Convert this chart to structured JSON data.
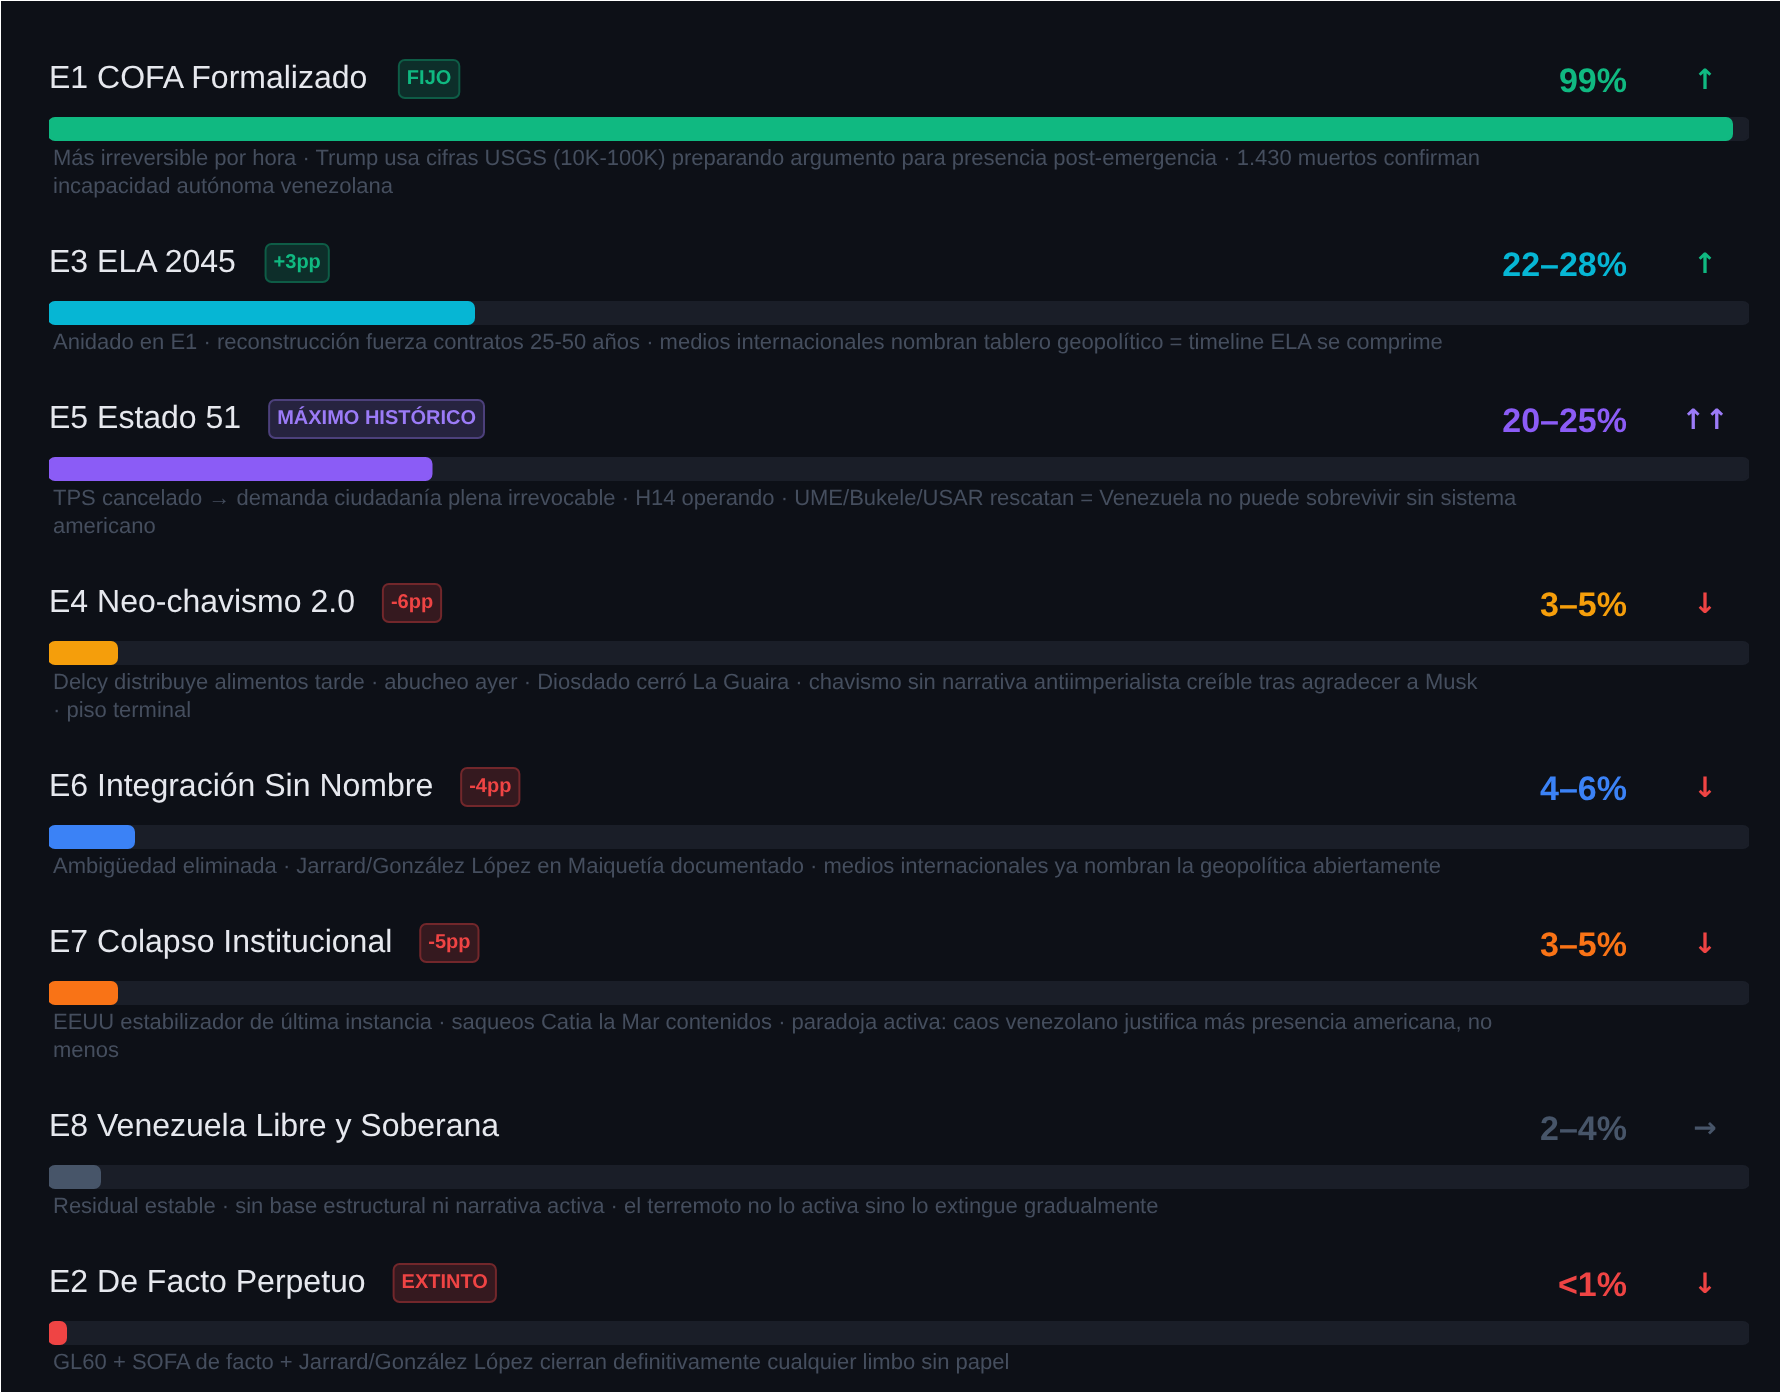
{
  "chart_data": {
    "type": "bar",
    "orientation": "horizontal",
    "categories": [
      "E1 COFA Formalizado",
      "E3 ELA 2045",
      "E5 Estado 51",
      "E4 Neo-chavismo 2.0",
      "E6 Integración Sin Nombre",
      "E7 Colapso Institucional",
      "E8 Venezuela Libre y Soberana",
      "E2 De Facto Perpetuo"
    ],
    "values": [
      99,
      25,
      22.5,
      4,
      5,
      4,
      3,
      1
    ],
    "colors": [
      "#10b981",
      "#06b6d4",
      "#8b5cf6",
      "#f59e0b",
      "#3b82f6",
      "#f97316",
      "#475569",
      "#ef4444"
    ],
    "value_labels": [
      "99%",
      null,
      null,
      null,
      null,
      null,
      null,
      "<1%"
    ],
    "xlim": [
      0,
      100
    ],
    "tick_labels": false,
    "annotations": [
      "FIJO",
      "↑",
      "Más irreversible por hora · Trump usa cifras USGS (10K-100K) preparando argumento para presencia post-emergencia · 1.430 muertos confirman incapacidad autónoma venezolana",
      "+3pp",
      "22–28%",
      "↑",
      "Anidado en E1 · reconstrucción fuerza contratos 25-50 años · medios internacionales nombran tablero geopolítico = timeline ELA se comprime",
      "MÁXIMO HISTÓRICO",
      "20–25%",
      "↑↑",
      "TPS cancelado → demanda ciudadanía plena irrevocable · H14 operando · UME/Bukele/USAR rescatan = Venezuela no puede sobrevivir sin sistema americano",
      "-6pp",
      "3–5%",
      "↓",
      "Delcy distribuye alimentos tarde · abucheo ayer · Diosdado cerró La Guaira · chavismo sin narrativa antiimperialista creíble tras agradecer a Musk · piso terminal",
      "-4pp",
      "4–6%",
      "↓",
      "Ambigüedad eliminada · Jarrard/González López en Maiquetía documentado · medios internacionales ya nombran la geopolítica abiertamente",
      "-5pp",
      "3–5%",
      "↓",
      "EEUU estabilizador de última instancia · saqueos Catia la Mar contenidos · paradoja activa: caos venezolano justifica más presencia americana, no menos",
      "2–4%",
      "→",
      "Residual estable · sin base estructural ni narrativa activa · el terremoto no lo activa sino lo extingue gradualmente",
      "EXTINTO",
      "↓",
      "GL60 + SOFA de facto + Jarrard/González López cierran definitivamente cualquier limbo sin papel"
    ]
  }
}
